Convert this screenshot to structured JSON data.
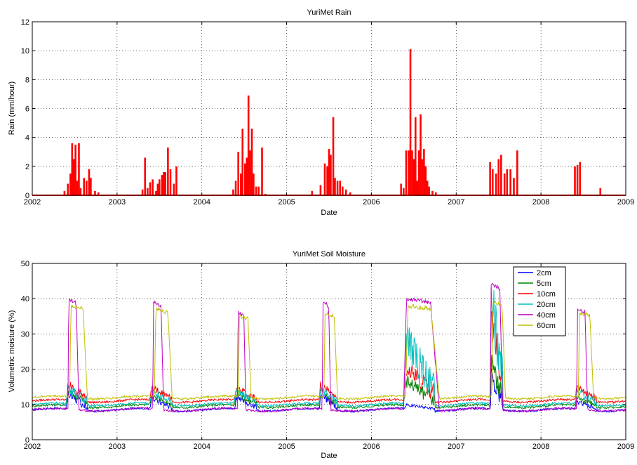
{
  "chart_data": [
    {
      "type": "bar",
      "title": "YuriMet Rain",
      "xlabel": "Date",
      "ylabel": "Rain (mm/hour)",
      "xlim": [
        "2002",
        "2009"
      ],
      "ylim": [
        0,
        12
      ],
      "xticks": [
        "2002",
        "2003",
        "2004",
        "2005",
        "2006",
        "2007",
        "2008",
        "2009"
      ],
      "yticks": [
        "0",
        "2",
        "4",
        "6",
        "8",
        "10",
        "12"
      ],
      "grid": true,
      "color": "#ff0000",
      "x": [
        2002.38,
        2002.42,
        2002.45,
        2002.47,
        2002.49,
        2002.51,
        2002.53,
        2002.55,
        2002.57,
        2002.61,
        2002.64,
        2002.67,
        2002.69,
        2002.74,
        2002.78,
        2003.3,
        2003.33,
        2003.36,
        2003.39,
        2003.42,
        2003.46,
        2003.48,
        2003.5,
        2003.53,
        2003.55,
        2003.57,
        2003.6,
        2003.63,
        2003.67,
        2003.7,
        2004.37,
        2004.4,
        2004.43,
        2004.46,
        2004.48,
        2004.51,
        2004.53,
        2004.55,
        2004.57,
        2004.59,
        2004.61,
        2004.64,
        2004.67,
        2004.71,
        2004.75,
        2005.3,
        2005.4,
        2005.45,
        2005.48,
        2005.5,
        2005.52,
        2005.55,
        2005.57,
        2005.6,
        2005.63,
        2005.66,
        2005.7,
        2005.75,
        2006.35,
        2006.38,
        2006.41,
        2006.44,
        2006.46,
        2006.48,
        2006.5,
        2006.52,
        2006.54,
        2006.56,
        2006.58,
        2006.6,
        2006.62,
        2006.64,
        2006.66,
        2006.68,
        2006.72,
        2006.76,
        2007.4,
        2007.43,
        2007.47,
        2007.5,
        2007.53,
        2007.57,
        2007.6,
        2007.64,
        2007.68,
        2007.72,
        2008.4,
        2008.43,
        2008.46,
        2008.7
      ],
      "values": [
        0.3,
        0.8,
        1.5,
        3.6,
        2.5,
        3.5,
        1.0,
        3.6,
        0.5,
        1.2,
        1.0,
        1.8,
        1.2,
        0.3,
        0.2,
        0.4,
        2.6,
        0.5,
        0.9,
        1.1,
        0.3,
        0.8,
        1.1,
        1.4,
        1.6,
        1.6,
        3.3,
        1.8,
        0.8,
        2.0,
        0.4,
        1.0,
        3.0,
        1.5,
        4.6,
        2.2,
        2.6,
        6.9,
        3.1,
        4.6,
        1.5,
        0.6,
        0.6,
        3.3,
        0.1,
        0.3,
        0.7,
        2.2,
        2.0,
        3.2,
        2.8,
        5.4,
        1.2,
        1.0,
        1.0,
        0.6,
        0.4,
        0.2,
        0.8,
        0.5,
        3.1,
        3.1,
        10.1,
        3.1,
        2.5,
        5.4,
        1.0,
        3.1,
        5.6,
        2.5,
        3.2,
        2.0,
        1.0,
        0.6,
        0.3,
        0.2,
        2.3,
        1.8,
        1.5,
        2.5,
        2.8,
        1.5,
        1.8,
        1.8,
        1.2,
        3.1,
        2.0,
        2.1,
        2.3,
        0.5
      ]
    },
    {
      "type": "line",
      "title": "YuriMet Soil Moisture",
      "xlabel": "Date",
      "ylabel": "Volumetric moisture (%)",
      "xlim": [
        "2002",
        "2009"
      ],
      "ylim": [
        0,
        50
      ],
      "xticks": [
        "2002",
        "2003",
        "2004",
        "2005",
        "2006",
        "2007",
        "2008",
        "2009"
      ],
      "yticks": [
        "0",
        "10",
        "20",
        "30",
        "40",
        "50"
      ],
      "grid": true,
      "legend": "top-right",
      "series": [
        {
          "name": "2cm",
          "color": "#0000ff",
          "base": 8.5,
          "seasons": [
            {
              "start": 2002.4,
              "end": 2002.65,
              "peak": 13
            },
            {
              "start": 2003.38,
              "end": 2003.65,
              "peak": 12
            },
            {
              "start": 2004.38,
              "end": 2004.65,
              "peak": 12
            },
            {
              "start": 2005.38,
              "end": 2005.6,
              "peak": 13
            },
            {
              "start": 2006.38,
              "end": 2006.75,
              "peak": 10
            },
            {
              "start": 2007.4,
              "end": 2007.55,
              "peak": 19
            },
            {
              "start": 2008.4,
              "end": 2008.65,
              "peak": 11
            }
          ]
        },
        {
          "name": "5cm",
          "color": "#008000",
          "base": 9.5,
          "seasons": [
            {
              "start": 2002.4,
              "end": 2002.65,
              "peak": 14
            },
            {
              "start": 2003.38,
              "end": 2003.65,
              "peak": 13
            },
            {
              "start": 2004.38,
              "end": 2004.65,
              "peak": 13
            },
            {
              "start": 2005.38,
              "end": 2005.6,
              "peak": 14
            },
            {
              "start": 2006.38,
              "end": 2006.75,
              "peak": 17
            },
            {
              "start": 2007.4,
              "end": 2007.55,
              "peak": 23
            },
            {
              "start": 2008.4,
              "end": 2008.65,
              "peak": 12
            }
          ]
        },
        {
          "name": "10cm",
          "color": "#ff0000",
          "base": 11,
          "seasons": [
            {
              "start": 2002.4,
              "end": 2002.65,
              "peak": 16
            },
            {
              "start": 2003.38,
              "end": 2003.65,
              "peak": 15
            },
            {
              "start": 2004.38,
              "end": 2004.65,
              "peak": 15
            },
            {
              "start": 2005.38,
              "end": 2005.6,
              "peak": 16
            },
            {
              "start": 2006.38,
              "end": 2006.75,
              "peak": 21
            },
            {
              "start": 2007.4,
              "end": 2007.55,
              "peak": 35
            },
            {
              "start": 2008.4,
              "end": 2008.65,
              "peak": 15
            }
          ]
        },
        {
          "name": "20cm",
          "color": "#00bfbf",
          "base": 10,
          "seasons": [
            {
              "start": 2002.4,
              "end": 2002.65,
              "peak": 15
            },
            {
              "start": 2003.38,
              "end": 2003.65,
              "peak": 14
            },
            {
              "start": 2004.38,
              "end": 2004.65,
              "peak": 14
            },
            {
              "start": 2005.38,
              "end": 2005.6,
              "peak": 15
            },
            {
              "start": 2006.38,
              "end": 2006.75,
              "peak": 30
            },
            {
              "start": 2007.4,
              "end": 2007.55,
              "peak": 43
            },
            {
              "start": 2008.4,
              "end": 2008.65,
              "peak": 14
            }
          ]
        },
        {
          "name": "40cm",
          "color": "#bf00bf",
          "base": 8.5,
          "seasons": [
            {
              "start": 2002.42,
              "end": 2002.55,
              "peak": 40
            },
            {
              "start": 2003.42,
              "end": 2003.55,
              "peak": 39
            },
            {
              "start": 2004.42,
              "end": 2004.52,
              "peak": 36
            },
            {
              "start": 2005.42,
              "end": 2005.52,
              "peak": 39
            },
            {
              "start": 2006.38,
              "end": 2006.8,
              "peak": 40
            },
            {
              "start": 2007.4,
              "end": 2007.55,
              "peak": 44
            },
            {
              "start": 2008.42,
              "end": 2008.55,
              "peak": 37
            }
          ]
        },
        {
          "name": "60cm",
          "color": "#bfbf00",
          "base": 12,
          "seasons": [
            {
              "start": 2002.44,
              "end": 2002.65,
              "peak": 38
            },
            {
              "start": 2003.44,
              "end": 2003.65,
              "peak": 37
            },
            {
              "start": 2004.43,
              "end": 2004.58,
              "peak": 35
            },
            {
              "start": 2005.44,
              "end": 2005.6,
              "peak": 36
            },
            {
              "start": 2006.4,
              "end": 2006.8,
              "peak": 38
            },
            {
              "start": 2007.42,
              "end": 2007.58,
              "peak": 39
            },
            {
              "start": 2008.44,
              "end": 2008.62,
              "peak": 36
            }
          ]
        }
      ]
    }
  ]
}
